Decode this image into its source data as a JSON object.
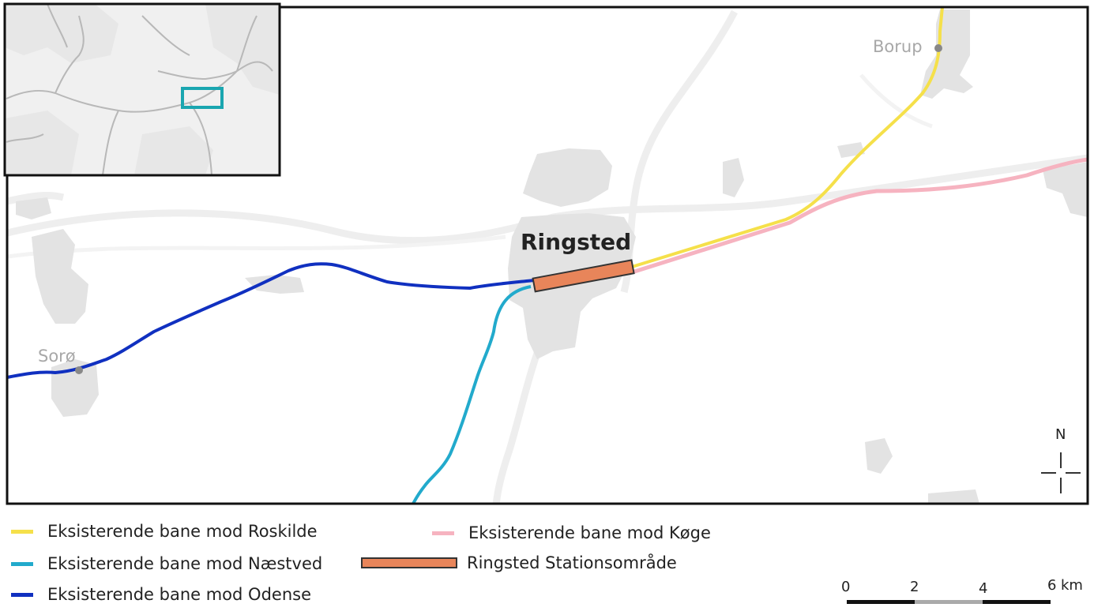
{
  "map": {
    "title_city": "Ringsted",
    "places": [
      {
        "name": "Borup"
      },
      {
        "name": "Sorø"
      }
    ],
    "north_label": "N",
    "colors": {
      "roskilde": "#f5e04a",
      "koege": "#f6b3c0",
      "naestved": "#22aacc",
      "odense": "#1030c0",
      "station": "#e8855a",
      "inset_marker": "#1aa6b0",
      "background_features": "#e3e3e3",
      "place_dot": "#888888",
      "place_label": "#a8a8a8"
    }
  },
  "legend": {
    "items": [
      {
        "label": "Eksisterende bane mod Roskilde",
        "color": "#f5e04a",
        "type": "line"
      },
      {
        "label": "Eksisterende bane mod Næstved",
        "color": "#22aacc",
        "type": "line"
      },
      {
        "label": "Eksisterende bane mod Odense",
        "color": "#1030c0",
        "type": "line"
      },
      {
        "label": "Eksisterende bane mod Køge",
        "color": "#f6b3c0",
        "type": "line"
      },
      {
        "label": "Ringsted Stationsområde",
        "color": "#e8855a",
        "type": "box"
      }
    ]
  },
  "scalebar": {
    "ticks": [
      "0",
      "2",
      "4",
      "6"
    ],
    "unit": "km"
  }
}
